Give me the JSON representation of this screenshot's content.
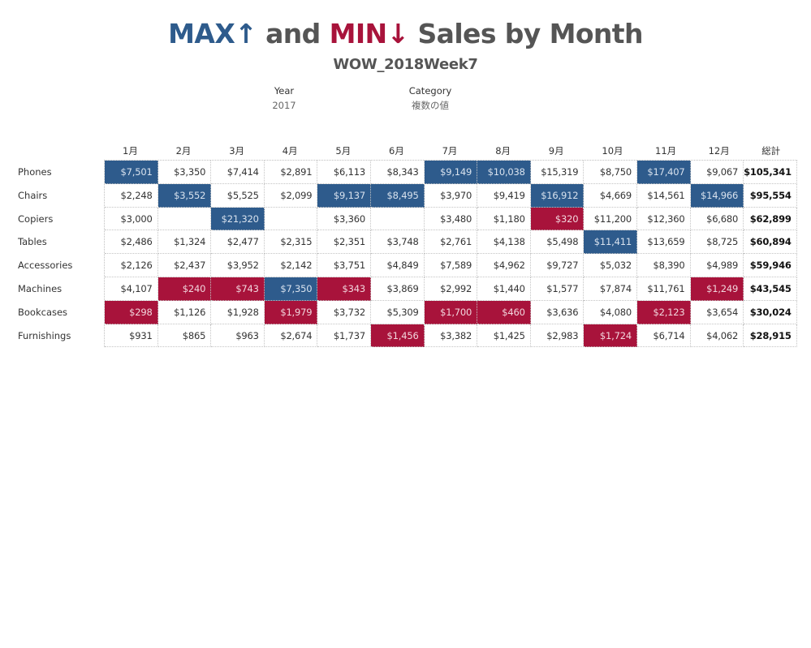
{
  "title": {
    "max_text": "MAX",
    "max_arrow": "↑",
    "and_text": " and ",
    "min_text": "MIN",
    "min_arrow": "↓",
    "rest_text": " Sales by Month"
  },
  "subtitle": "WOW_2018Week7",
  "filters": {
    "year": {
      "label": "Year",
      "value": "2017"
    },
    "category": {
      "label": "Category",
      "value": "複数の値"
    }
  },
  "colors": {
    "max": "#2e5b8c",
    "min": "#a8133b",
    "text": "#555555"
  },
  "columns": [
    "1月",
    "2月",
    "3月",
    "4月",
    "5月",
    "6月",
    "7月",
    "8月",
    "9月",
    "10月",
    "11月",
    "12月",
    "総計"
  ],
  "rows": [
    {
      "label": "Phones",
      "cells": [
        {
          "v": "$7,501",
          "h": "max"
        },
        {
          "v": "$3,350",
          "h": ""
        },
        {
          "v": "$7,414",
          "h": ""
        },
        {
          "v": "$2,891",
          "h": ""
        },
        {
          "v": "$6,113",
          "h": ""
        },
        {
          "v": "$8,343",
          "h": ""
        },
        {
          "v": "$9,149",
          "h": "max"
        },
        {
          "v": "$10,038",
          "h": "max"
        },
        {
          "v": "$15,319",
          "h": ""
        },
        {
          "v": "$8,750",
          "h": ""
        },
        {
          "v": "$17,407",
          "h": "max"
        },
        {
          "v": "$9,067",
          "h": ""
        }
      ],
      "total": "$105,341"
    },
    {
      "label": "Chairs",
      "cells": [
        {
          "v": "$2,248",
          "h": ""
        },
        {
          "v": "$3,552",
          "h": "max"
        },
        {
          "v": "$5,525",
          "h": ""
        },
        {
          "v": "$2,099",
          "h": ""
        },
        {
          "v": "$9,137",
          "h": "max"
        },
        {
          "v": "$8,495",
          "h": "max"
        },
        {
          "v": "$3,970",
          "h": ""
        },
        {
          "v": "$9,419",
          "h": ""
        },
        {
          "v": "$16,912",
          "h": "max"
        },
        {
          "v": "$4,669",
          "h": ""
        },
        {
          "v": "$14,561",
          "h": ""
        },
        {
          "v": "$14,966",
          "h": "max"
        }
      ],
      "total": "$95,554"
    },
    {
      "label": "Copiers",
      "cells": [
        {
          "v": "$3,000",
          "h": ""
        },
        {
          "v": "",
          "h": ""
        },
        {
          "v": "$21,320",
          "h": "max"
        },
        {
          "v": "",
          "h": ""
        },
        {
          "v": "$3,360",
          "h": ""
        },
        {
          "v": "",
          "h": ""
        },
        {
          "v": "$3,480",
          "h": ""
        },
        {
          "v": "$1,180",
          "h": ""
        },
        {
          "v": "$320",
          "h": "min"
        },
        {
          "v": "$11,200",
          "h": ""
        },
        {
          "v": "$12,360",
          "h": ""
        },
        {
          "v": "$6,680",
          "h": ""
        }
      ],
      "total": "$62,899"
    },
    {
      "label": "Tables",
      "cells": [
        {
          "v": "$2,486",
          "h": ""
        },
        {
          "v": "$1,324",
          "h": ""
        },
        {
          "v": "$2,477",
          "h": ""
        },
        {
          "v": "$2,315",
          "h": ""
        },
        {
          "v": "$2,351",
          "h": ""
        },
        {
          "v": "$3,748",
          "h": ""
        },
        {
          "v": "$2,761",
          "h": ""
        },
        {
          "v": "$4,138",
          "h": ""
        },
        {
          "v": "$5,498",
          "h": ""
        },
        {
          "v": "$11,411",
          "h": "max"
        },
        {
          "v": "$13,659",
          "h": ""
        },
        {
          "v": "$8,725",
          "h": ""
        }
      ],
      "total": "$60,894"
    },
    {
      "label": "Accessories",
      "cells": [
        {
          "v": "$2,126",
          "h": ""
        },
        {
          "v": "$2,437",
          "h": ""
        },
        {
          "v": "$3,952",
          "h": ""
        },
        {
          "v": "$2,142",
          "h": ""
        },
        {
          "v": "$3,751",
          "h": ""
        },
        {
          "v": "$4,849",
          "h": ""
        },
        {
          "v": "$7,589",
          "h": ""
        },
        {
          "v": "$4,962",
          "h": ""
        },
        {
          "v": "$9,727",
          "h": ""
        },
        {
          "v": "$5,032",
          "h": ""
        },
        {
          "v": "$8,390",
          "h": ""
        },
        {
          "v": "$4,989",
          "h": ""
        }
      ],
      "total": "$59,946"
    },
    {
      "label": "Machines",
      "cells": [
        {
          "v": "$4,107",
          "h": ""
        },
        {
          "v": "$240",
          "h": "min"
        },
        {
          "v": "$743",
          "h": "min"
        },
        {
          "v": "$7,350",
          "h": "max"
        },
        {
          "v": "$343",
          "h": "min"
        },
        {
          "v": "$3,869",
          "h": ""
        },
        {
          "v": "$2,992",
          "h": ""
        },
        {
          "v": "$1,440",
          "h": ""
        },
        {
          "v": "$1,577",
          "h": ""
        },
        {
          "v": "$7,874",
          "h": ""
        },
        {
          "v": "$11,761",
          "h": ""
        },
        {
          "v": "$1,249",
          "h": "min"
        }
      ],
      "total": "$43,545"
    },
    {
      "label": "Bookcases",
      "cells": [
        {
          "v": "$298",
          "h": "min"
        },
        {
          "v": "$1,126",
          "h": ""
        },
        {
          "v": "$1,928",
          "h": ""
        },
        {
          "v": "$1,979",
          "h": "min"
        },
        {
          "v": "$3,732",
          "h": ""
        },
        {
          "v": "$5,309",
          "h": ""
        },
        {
          "v": "$1,700",
          "h": "min"
        },
        {
          "v": "$460",
          "h": "min"
        },
        {
          "v": "$3,636",
          "h": ""
        },
        {
          "v": "$4,080",
          "h": ""
        },
        {
          "v": "$2,123",
          "h": "min"
        },
        {
          "v": "$3,654",
          "h": ""
        }
      ],
      "total": "$30,024"
    },
    {
      "label": "Furnishings",
      "cells": [
        {
          "v": "$931",
          "h": ""
        },
        {
          "v": "$865",
          "h": ""
        },
        {
          "v": "$963",
          "h": ""
        },
        {
          "v": "$2,674",
          "h": ""
        },
        {
          "v": "$1,737",
          "h": ""
        },
        {
          "v": "$1,456",
          "h": "min"
        },
        {
          "v": "$3,382",
          "h": ""
        },
        {
          "v": "$1,425",
          "h": ""
        },
        {
          "v": "$2,983",
          "h": ""
        },
        {
          "v": "$1,724",
          "h": "min"
        },
        {
          "v": "$6,714",
          "h": ""
        },
        {
          "v": "$4,062",
          "h": ""
        }
      ],
      "total": "$28,915"
    }
  ]
}
